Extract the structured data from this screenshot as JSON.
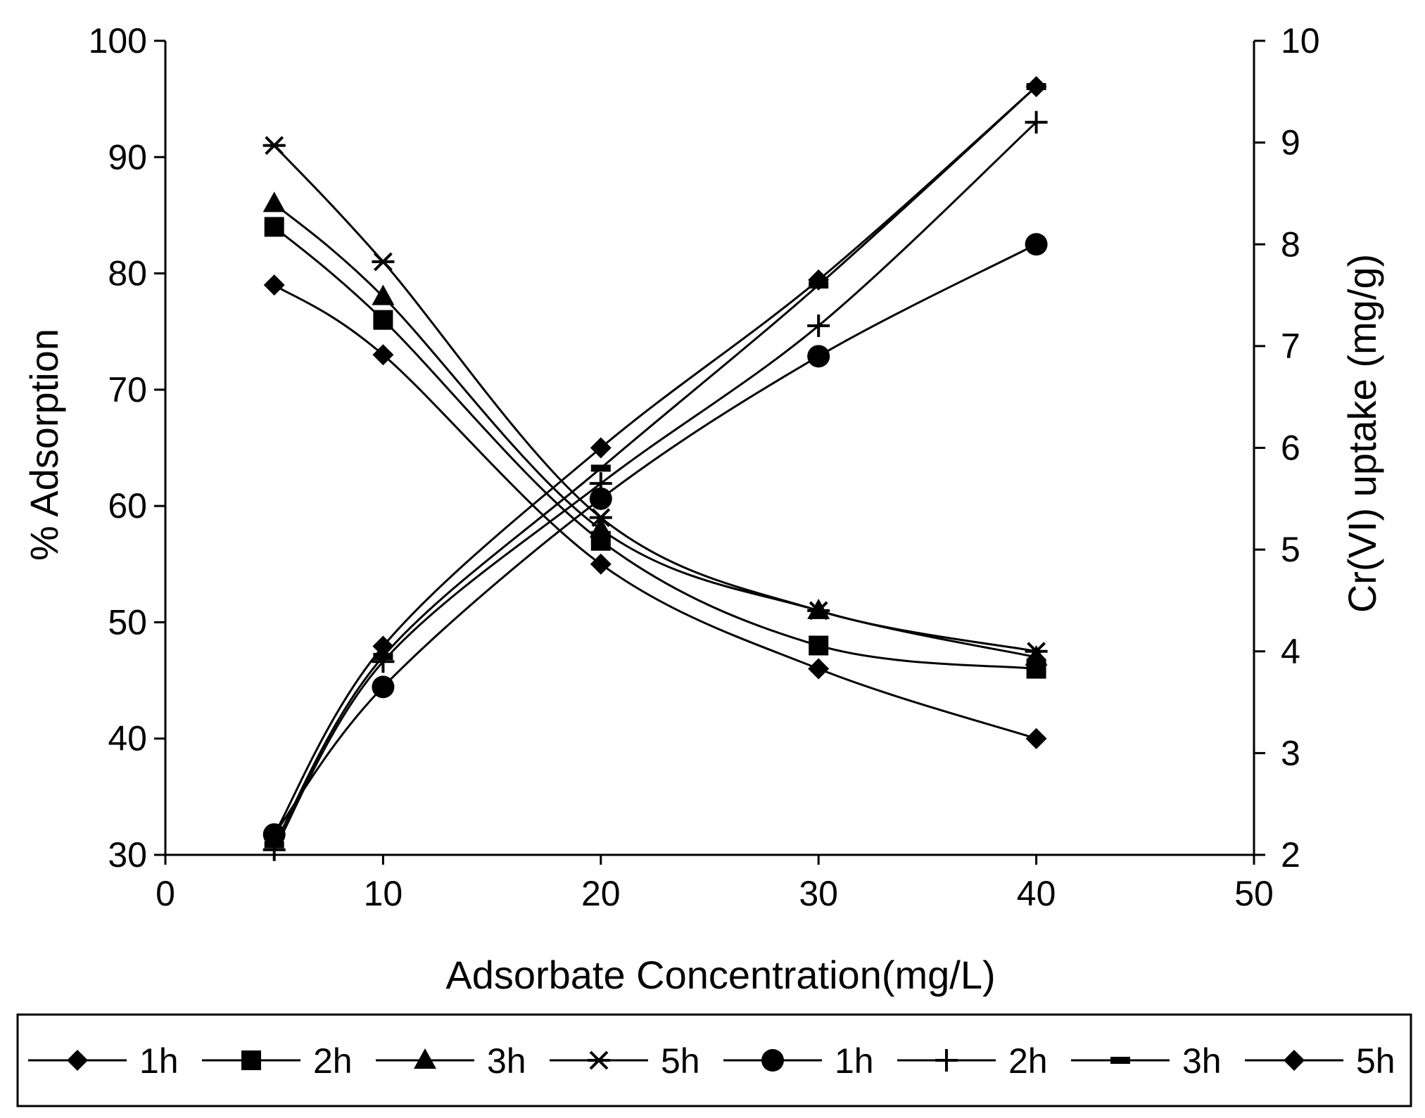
{
  "chart_data": {
    "type": "line",
    "title": "",
    "xlabel": "Adsorbate Concentration(mg/L)",
    "ylabel": "% Adsorption",
    "y2label": "Cr(VI) uptake (mg/g)",
    "xlim": [
      0,
      50
    ],
    "ylim": [
      30,
      100
    ],
    "y2lim": [
      2,
      10
    ],
    "x_ticks": [
      0,
      10,
      20,
      30,
      40,
      50
    ],
    "y_ticks": [
      30,
      40,
      50,
      60,
      70,
      80,
      90,
      100
    ],
    "y2_ticks": [
      2,
      3,
      4,
      5,
      6,
      7,
      8,
      9,
      10
    ],
    "grid": false,
    "legend_position": "bottom",
    "x": [
      5,
      10,
      20,
      30,
      40
    ],
    "series": [
      {
        "name": "1h",
        "axis": "left",
        "marker": "diamond",
        "values": [
          79,
          73,
          55,
          46,
          40
        ]
      },
      {
        "name": "2h",
        "axis": "left",
        "marker": "square",
        "values": [
          84,
          76,
          57,
          48,
          46
        ]
      },
      {
        "name": "3h",
        "axis": "left",
        "marker": "triangle",
        "values": [
          86,
          78,
          58,
          51,
          47
        ]
      },
      {
        "name": "5h",
        "axis": "left",
        "marker": "asterisk",
        "values": [
          91,
          81,
          59,
          51,
          47.5
        ]
      },
      {
        "name": "1h",
        "axis": "right",
        "marker": "circle",
        "values": [
          2.2,
          3.65,
          5.5,
          6.9,
          8.0
        ]
      },
      {
        "name": "2h",
        "axis": "right",
        "marker": "plus",
        "values": [
          2.05,
          3.9,
          5.65,
          7.2,
          9.2
        ]
      },
      {
        "name": "3h",
        "axis": "right",
        "marker": "dash",
        "values": [
          2.1,
          3.95,
          5.8,
          7.6,
          9.55
        ]
      },
      {
        "name": "5h",
        "axis": "right",
        "marker": "diamond",
        "values": [
          2.2,
          4.05,
          6.0,
          7.65,
          9.55
        ]
      }
    ]
  }
}
